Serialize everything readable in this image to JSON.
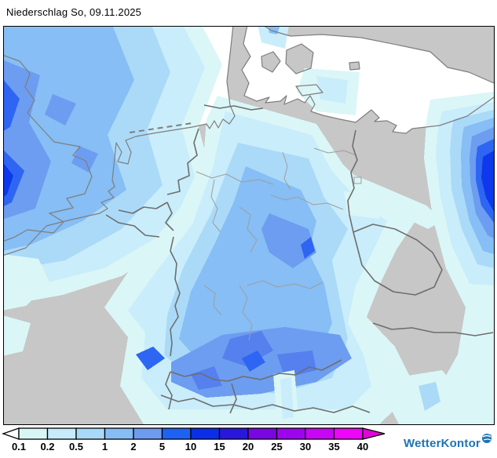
{
  "header": {
    "title": "Niederschlag So, 09.11.2025"
  },
  "map": {
    "description": "precipitation-map-central-europe",
    "sea_color": "#FFFFFF",
    "land_color": "#C7C7C7",
    "country_border_color": "#6E6E6E",
    "state_border_color": "#9E9E9E",
    "coast_color": "#7E7E7E"
  },
  "legend": {
    "tick_labels": [
      "0.1",
      "0.2",
      "0.5",
      "1",
      "2",
      "5",
      "10",
      "15",
      "20",
      "25",
      "30",
      "35",
      "40"
    ],
    "segment_colors": [
      "#D9F6F6",
      "#C6EBFA",
      "#A9D9F8",
      "#85BDF4",
      "#6D9BEF",
      "#1C63F4",
      "#0B2FE8",
      "#2A17DC",
      "#7A06E2",
      "#9D05EF",
      "#C905F5",
      "#EF05FA"
    ],
    "left_arrow_color": "#FFFFFF",
    "right_arrow_color": "#E203DC",
    "outline_color": "#000000"
  },
  "branding": {
    "name": "WetterKontor",
    "color": "#1E73B4"
  }
}
